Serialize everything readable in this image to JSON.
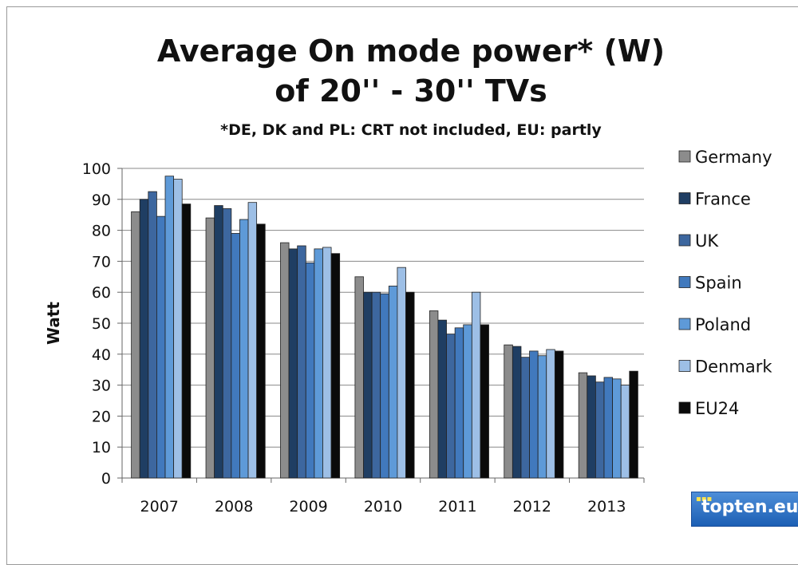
{
  "chart_data": {
    "type": "bar",
    "title_line1": "Average On mode power* (W)",
    "title_line2": "of 20'' - 30'' TVs",
    "subtitle": "*DE, DK and PL: CRT not included, EU: partly",
    "ylabel": "Watt",
    "xlabel": "",
    "ylim": [
      0,
      100
    ],
    "yticks": [
      0,
      10,
      20,
      30,
      40,
      50,
      60,
      70,
      80,
      90,
      100
    ],
    "grid": true,
    "legend_position": "right",
    "categories": [
      "2007",
      "2008",
      "2009",
      "2010",
      "2011",
      "2012",
      "2013"
    ],
    "series": [
      {
        "name": "Germany",
        "color": "#8c8c8c",
        "values": [
          86,
          84,
          76,
          65,
          54,
          43,
          34
        ]
      },
      {
        "name": "France",
        "color": "#1f3e63",
        "values": [
          90,
          88,
          74,
          60,
          51,
          42.5,
          33
        ]
      },
      {
        "name": "UK",
        "color": "#3d679f",
        "values": [
          92.5,
          87,
          75,
          60,
          46.5,
          39,
          31
        ]
      },
      {
        "name": "Spain",
        "color": "#4179bd",
        "values": [
          84.5,
          79,
          69.5,
          59.5,
          48.5,
          41,
          32.5
        ]
      },
      {
        "name": "Poland",
        "color": "#5e9ad8",
        "values": [
          97.5,
          83.5,
          74,
          62,
          49.5,
          39.5,
          32
        ]
      },
      {
        "name": "Denmark",
        "color": "#9dbfe6",
        "values": [
          96.5,
          89,
          74.5,
          68,
          60,
          41.5,
          30
        ]
      },
      {
        "name": "EU24",
        "color": "#0a0a0a",
        "values": [
          88.5,
          82,
          72.5,
          60,
          49.5,
          41,
          34.5
        ]
      }
    ]
  },
  "logo": {
    "text": "topten.eu"
  }
}
